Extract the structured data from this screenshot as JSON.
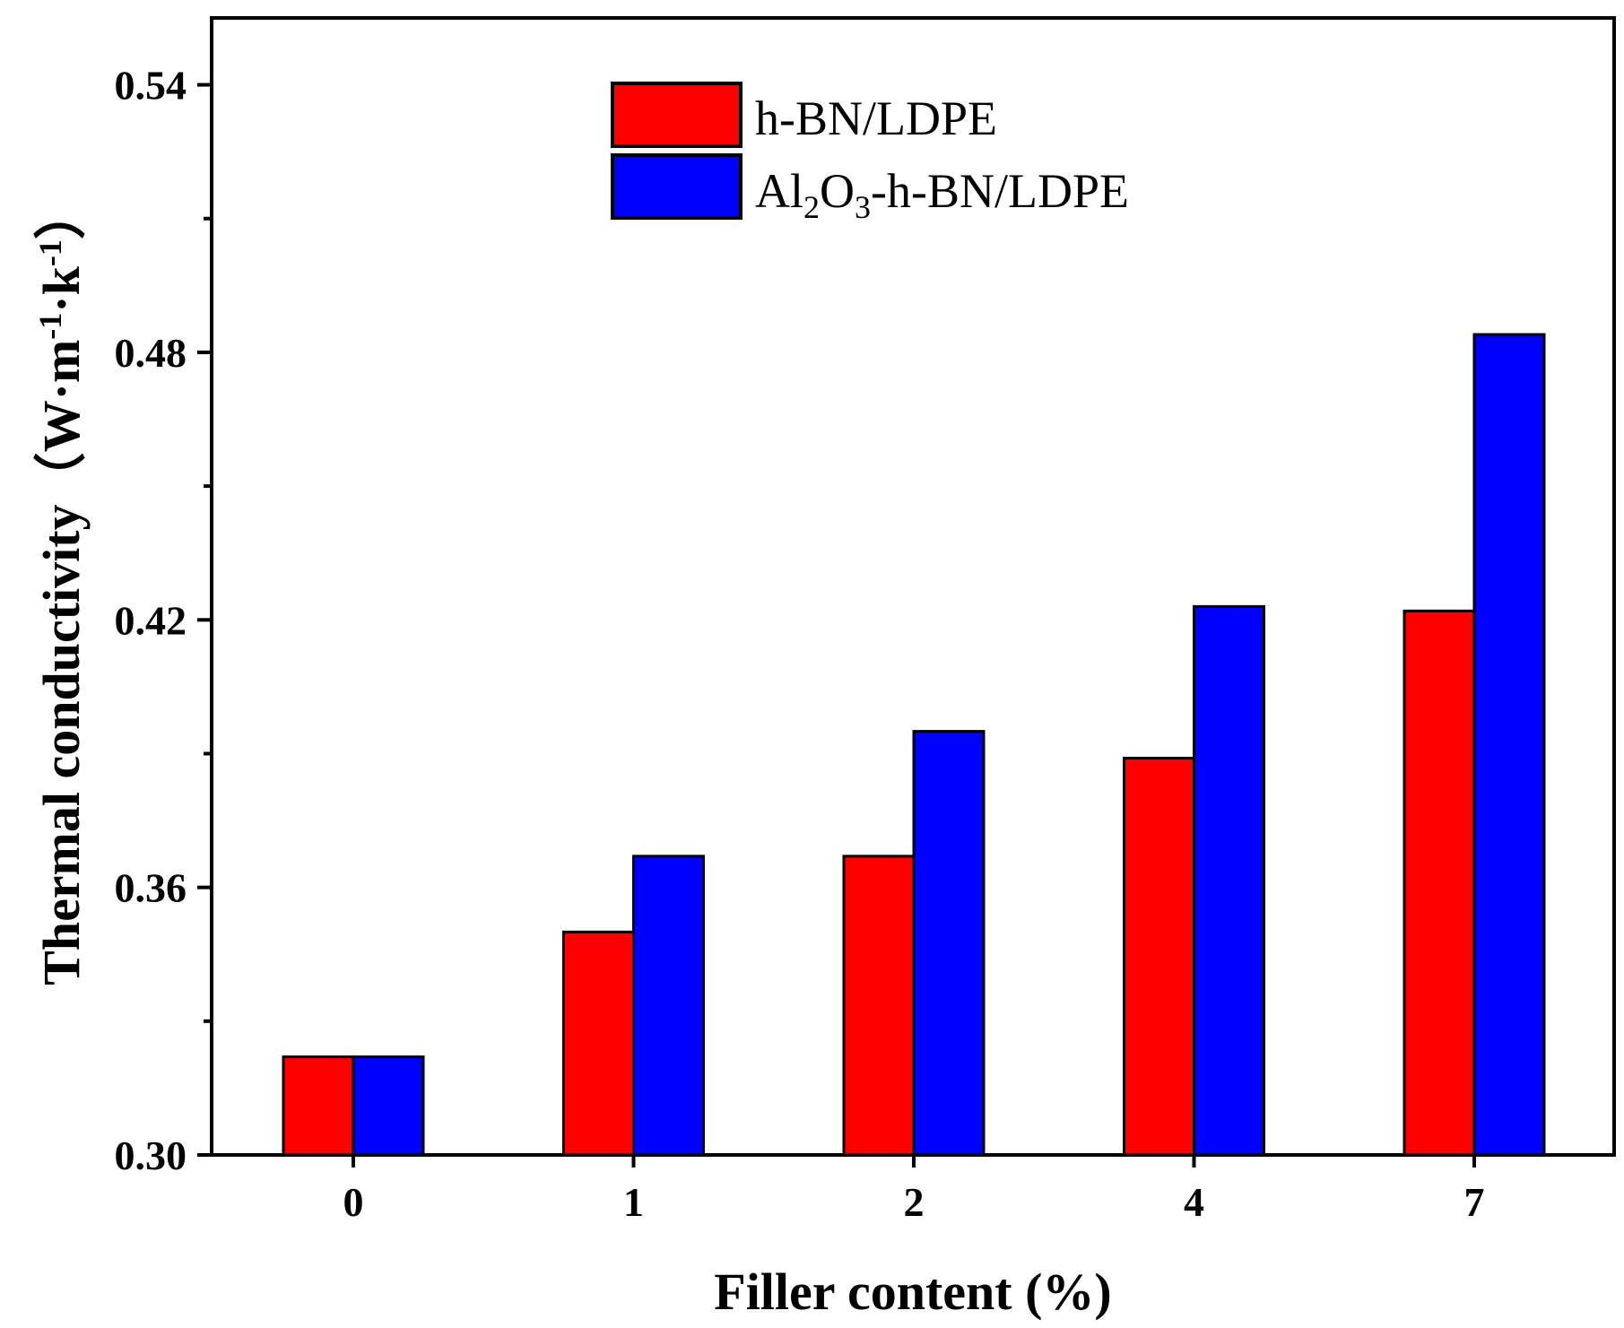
{
  "chart_data": {
    "type": "bar",
    "title": "",
    "categories": [
      "0",
      "1",
      "2",
      "4",
      "7"
    ],
    "series": [
      {
        "name": "h-BN/LDPE",
        "color": "#ff0000",
        "values": [
          0.322,
          0.35,
          0.367,
          0.389,
          0.422
        ]
      },
      {
        "name": "Al2O3-h-BN/LDPE",
        "color": "#0000ff",
        "values": [
          0.322,
          0.367,
          0.395,
          0.423,
          0.484
        ]
      }
    ],
    "legend_labels": {
      "series1": "h-BN/LDPE",
      "series2_prefix": "Al",
      "series2_sub1": "2",
      "series2_mid": "O",
      "series2_sub2": "3",
      "series2_suffix": "-h-BN/LDPE"
    },
    "xlabel": "Filler content (%)",
    "ylabel": {
      "main": "Thermal conductivity（W·m",
      "sup1": "-1",
      "mid": "·k",
      "sup2": "-1",
      "end": "）"
    },
    "ylim": [
      0.3,
      0.555
    ],
    "yticks": [
      "0.30",
      "0.36",
      "0.42",
      "0.48",
      "0.54"
    ],
    "ytick_values": [
      0.3,
      0.36,
      0.42,
      0.48,
      0.54
    ],
    "yminor_values": [
      0.33,
      0.39,
      0.45,
      0.51
    ],
    "legend_position": "top-center",
    "grid": false
  }
}
